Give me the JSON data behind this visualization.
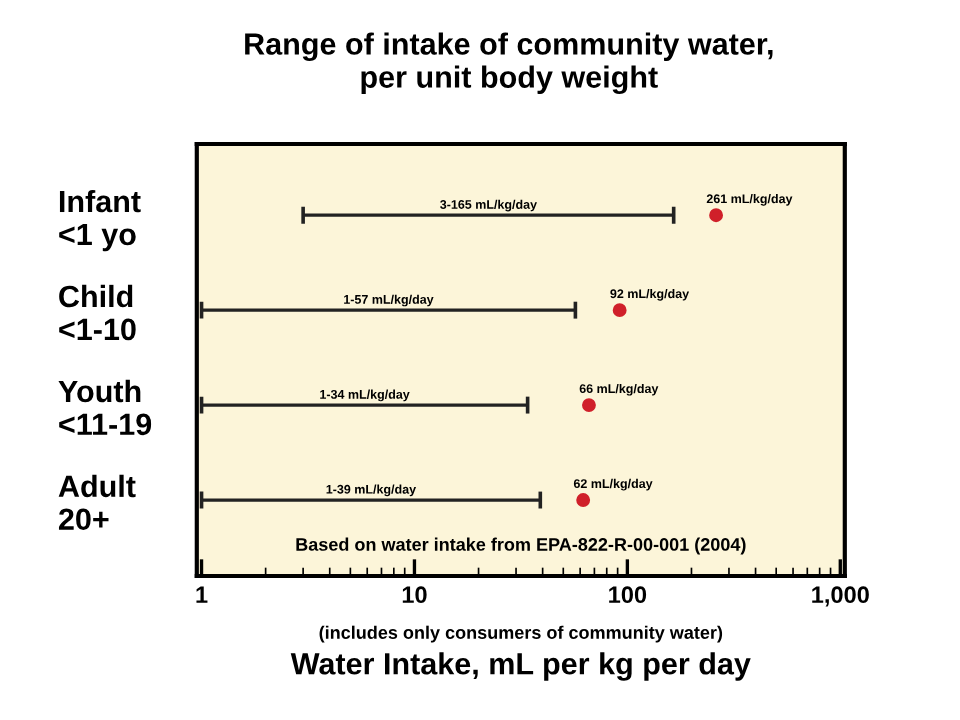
{
  "chart_data": {
    "type": "bar",
    "orientation": "horizontal",
    "title": "Range of intake of community water,\nper unit body weight",
    "xlabel": "Water Intake, mL per kg per day",
    "annotations": [
      "Based on water intake from EPA-822-R-00-001 (2004)",
      "(includes only consumers of community water)"
    ],
    "categories": [
      "Infant\n<1 yo",
      "Child\n<1-10",
      "Youth\n<11-19",
      "Adult\n20+"
    ],
    "series": [
      {
        "color": "#222222",
        "base": [
          3,
          1,
          1,
          1
        ],
        "values": [
          162,
          56,
          33,
          38
        ],
        "value_labels": [
          "3-165 mL/kg/day",
          "1-57 mL/kg/day",
          "1-34 mL/kg/day",
          "1-39 mL/kg/day"
        ]
      },
      {
        "type": "scatter",
        "color": "#d0202a",
        "marker": "circle",
        "values": [
          261,
          92,
          66,
          62
        ],
        "value_labels": [
          "261 mL/kg/day",
          "92 mL/kg/day",
          "66 mL/kg/day",
          "62 mL/kg/day"
        ]
      }
    ],
    "log": "x",
    "xlim": [
      0.95,
      1050
    ],
    "xticks": [
      1,
      10,
      100,
      {
        "value": 1000,
        "label": "1,000"
      }
    ],
    "grid": false,
    "legend": false
  }
}
